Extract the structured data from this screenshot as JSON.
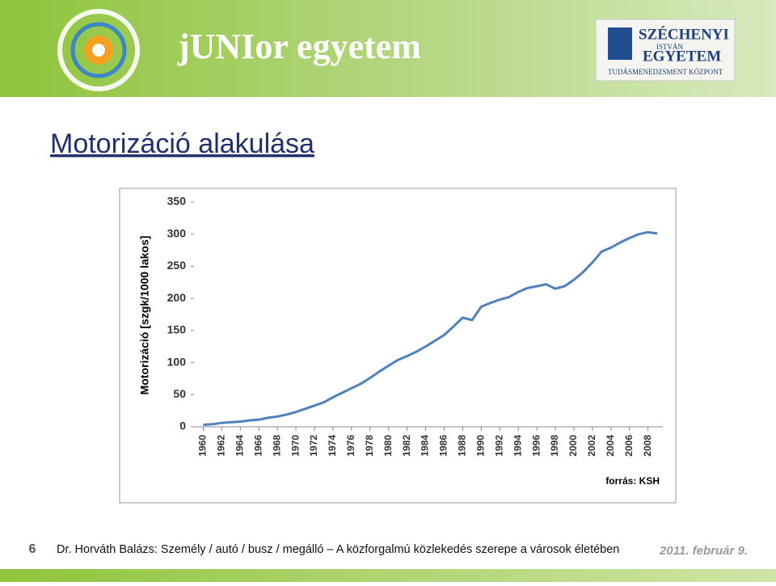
{
  "header": {
    "brand": "jUNIor egyetem",
    "partner": [
      "SZÉCHENYI",
      "ISTVÁN",
      "EGYETEM",
      "TUDÁSMENEDZSMENT KÖZPONT"
    ]
  },
  "slide_title": "Motorizáció alakulása",
  "chart_data": {
    "type": "line",
    "y_label": "Motorizáció [szgk/1000 lakos]",
    "annotation": "forrás: KSH",
    "x": [
      1960,
      1961,
      1962,
      1963,
      1964,
      1965,
      1966,
      1967,
      1968,
      1969,
      1970,
      1971,
      1972,
      1973,
      1974,
      1975,
      1976,
      1977,
      1978,
      1979,
      1980,
      1981,
      1982,
      1983,
      1984,
      1985,
      1986,
      1987,
      1988,
      1989,
      1990,
      1991,
      1992,
      1993,
      1994,
      1995,
      1996,
      1997,
      1998,
      1999,
      2000,
      2001,
      2002,
      2003,
      2004,
      2005,
      2006,
      2007,
      2008,
      2009
    ],
    "series": [
      {
        "name": "Motorizáció",
        "color": "#4f81bd",
        "values": [
          3,
          4,
          6,
          7,
          8,
          10,
          11,
          14,
          16,
          19,
          23,
          28,
          33,
          38,
          46,
          53,
          60,
          67,
          76,
          86,
          95,
          104,
          110,
          117,
          125,
          134,
          143,
          156,
          170,
          166,
          187,
          193,
          198,
          202,
          210,
          216,
          219,
          222,
          215,
          219,
          229,
          241,
          256,
          273,
          279,
          287,
          294,
          300,
          303,
          301
        ]
      }
    ],
    "xlim": [
      1959,
      2009.6
    ],
    "xticks": [
      1960,
      1962,
      1964,
      1966,
      1968,
      1970,
      1972,
      1974,
      1976,
      1978,
      1980,
      1982,
      1984,
      1986,
      1988,
      1990,
      1992,
      1994,
      1996,
      1998,
      2000,
      2002,
      2004,
      2006,
      2008
    ],
    "ylim": [
      0,
      350
    ],
    "yticks": [
      0,
      50,
      100,
      150,
      200,
      250,
      300,
      350
    ]
  },
  "footer": {
    "page": "6",
    "text": "Dr. Horváth Balázs: Személy / autó / busz / megálló – A közforgalmú közlekedés szerepe a városok életében",
    "date": "2011. február 9."
  }
}
